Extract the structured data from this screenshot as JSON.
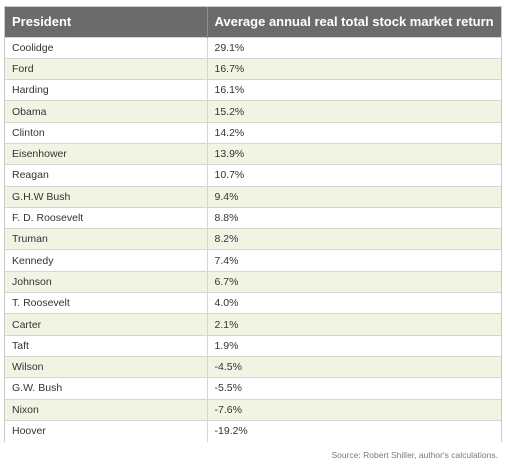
{
  "table": {
    "headers": [
      "President",
      "Average annual real total stock market return"
    ],
    "rows": [
      {
        "president": "Coolidge",
        "return": "29.1%"
      },
      {
        "president": "Ford",
        "return": "16.7%"
      },
      {
        "president": "Harding",
        "return": "16.1%"
      },
      {
        "president": "Obama",
        "return": "15.2%"
      },
      {
        "president": "Clinton",
        "return": "14.2%"
      },
      {
        "president": "Eisenhower",
        "return": "13.9%"
      },
      {
        "president": "Reagan",
        "return": "10.7%"
      },
      {
        "president": "G.H.W Bush",
        "return": "9.4%"
      },
      {
        "president": "F. D. Roosevelt",
        "return": "8.8%"
      },
      {
        "president": "Truman",
        "return": "8.2%"
      },
      {
        "president": "Kennedy",
        "return": "7.4%"
      },
      {
        "president": "Johnson",
        "return": "6.7%"
      },
      {
        "president": "T. Roosevelt",
        "return": "4.0%"
      },
      {
        "president": "Carter",
        "return": "2.1%"
      },
      {
        "president": "Taft",
        "return": "1.9%"
      },
      {
        "president": "Wilson",
        "return": "-4.5%"
      },
      {
        "president": "G.W. Bush",
        "return": "-5.5%"
      },
      {
        "president": "Nixon",
        "return": "-7.6%"
      },
      {
        "president": "Hoover",
        "return": "-19.2%"
      }
    ]
  },
  "source": "Source: Robert Shiller, author's calculations."
}
